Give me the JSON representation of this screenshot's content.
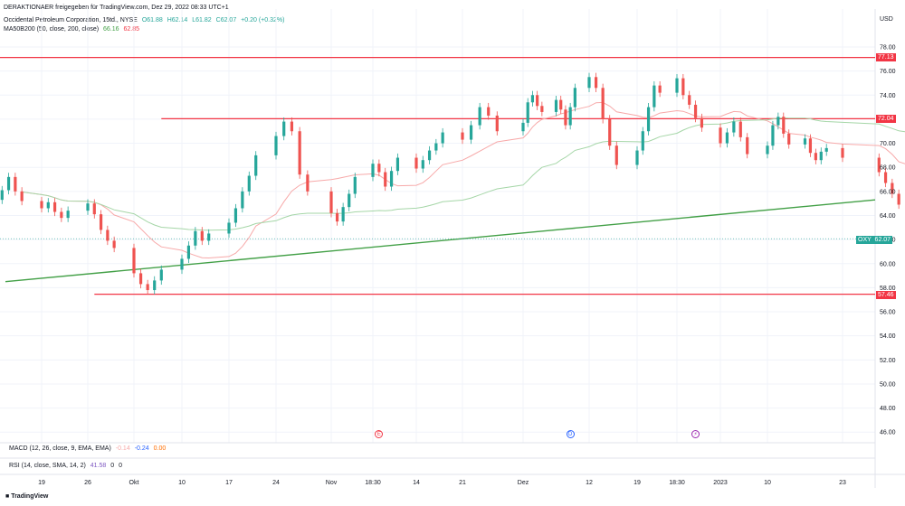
{
  "header": {
    "publisher": "DERAKTIONAER freigegeben für TradingView.com, Dez 29, 2022 08:33 UTC+1",
    "symbol": "Occidental Petroleum Corporation, 15td., NYSE",
    "ohlc": {
      "o": "O61.88",
      "h": "H62.14",
      "l": "L61.82",
      "c": "C62.07",
      "chg": "+0.20 (+0.32%)"
    },
    "ma_label": "MA50B200 (50, close, 200, close)",
    "ma50": "66.16",
    "ma200": "62.85",
    "currency": "USD"
  },
  "indicators": {
    "macd_label": "MACD (12, 26, close, 9, EMA, EMA)",
    "macd_v1": "-0.14",
    "macd_v2": "-0.24",
    "macd_v3": "0.00",
    "rsi_label": "RSI (14, close, SMA, 14, 2)",
    "rsi_v1": "41.58",
    "rsi_v2": "0",
    "rsi_v3": "0"
  },
  "events": [
    {
      "label": "E",
      "color": "#f23645",
      "date": "2022-11-08"
    },
    {
      "label": "D",
      "color": "#2962ff",
      "date": "2022-12-08"
    },
    {
      "label": "⚡",
      "color": "#9c27b0",
      "date": "2022-12-29"
    }
  ],
  "price_labels": {
    "ticker_box": "OXY",
    "last": "62.07",
    "level_1": "77.13",
    "level_2": "72.04",
    "level_3": "57.46"
  },
  "footer": {
    "logo": "TradingView"
  },
  "chart_data": {
    "type": "line",
    "title": "Occidental Petroleum Corporation, 15td., NYSE",
    "ylim": [
      44.6,
      79.2
    ],
    "y_ticks": [
      "78.00",
      "76.00",
      "74.00",
      "72.00",
      "70.00",
      "68.00",
      "66.00",
      "64.00",
      "62.00",
      "60.00",
      "58.00",
      "56.00",
      "54.00",
      "52.00",
      "50.00",
      "48.00",
      "46.00"
    ],
    "x_ticks": [
      "19",
      "26",
      "Okt",
      "10",
      "17",
      "24",
      "Nov",
      "18:30",
      "14",
      "21",
      "Dez",
      "12",
      "19",
      "18:30",
      "2023",
      "10",
      "23"
    ],
    "grid": true,
    "horizontal_levels": [
      {
        "value": 77.13,
        "color": "#f23645"
      },
      {
        "value": 72.04,
        "color": "#f23645",
        "start": "Okt 10"
      },
      {
        "value": 57.46,
        "color": "#f23645",
        "start": "Sep 26"
      }
    ],
    "trendline": {
      "color": "#43a047",
      "start": {
        "x": "Sep 15",
        "y": 58.5
      },
      "end": {
        "x": "Jan 24",
        "y": 65.3
      }
    },
    "last_price_line": {
      "value": 62.07,
      "color": "#26a69a"
    },
    "series": [
      {
        "name": "OXY",
        "type": "candlestick",
        "close": [
          65.3,
          66.1,
          67.2,
          66.0,
          65.2,
          64.6,
          65.1,
          64.3,
          63.8,
          64.4,
          65.0,
          64.1,
          62.8,
          61.9,
          61.3,
          59.2,
          58.3,
          57.8,
          58.6,
          59.5,
          60.4,
          61.5,
          62.7,
          61.9,
          62.5,
          63.4,
          64.6,
          66.0,
          67.3,
          69.0,
          70.6,
          71.8,
          71.0,
          67.4,
          66.0,
          64.2,
          63.5,
          64.7,
          65.8,
          67.2,
          68.3,
          67.6,
          66.4,
          67.7,
          68.8,
          67.9,
          68.6,
          69.4,
          70.0,
          70.9,
          70.3,
          71.5,
          73.0,
          72.3,
          71.0,
          71.7,
          73.4,
          74.0,
          73.1,
          72.6,
          73.6,
          72.8,
          71.5,
          73.0,
          74.6,
          75.5,
          74.6,
          72.0,
          69.8,
          68.2,
          69.4,
          71.0,
          73.0,
          74.8,
          74.2,
          75.4,
          74.0,
          73.2,
          72.1,
          71.3,
          70.0,
          70.9,
          71.8,
          70.5,
          69.1,
          69.8,
          71.5,
          72.2,
          70.8,
          69.9,
          70.4,
          69.2,
          68.6,
          69.3,
          69.6,
          68.8,
          67.6,
          66.7,
          65.8,
          64.9,
          64.3,
          63.6,
          63.0,
          63.8,
          64.5,
          63.8,
          63.4,
          63.0,
          62.3,
          61.5,
          62.3,
          62.8,
          63.5,
          62.9,
          62.4,
          63.3,
          64.3,
          63.6,
          62.0,
          61.1,
          62.2,
          63.6,
          64.5,
          64.0,
          62.4,
          62.07
        ]
      }
    ]
  }
}
